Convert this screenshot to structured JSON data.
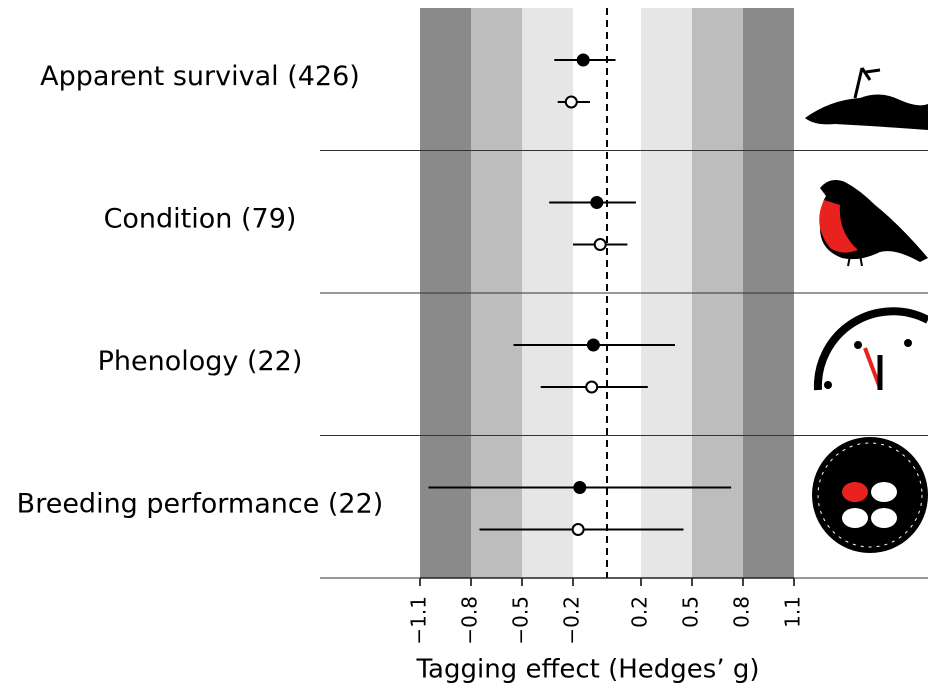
{
  "chart_data": {
    "type": "forest",
    "categories": [
      "Apparent survival (426)",
      "Condition (79)",
      "Phenology (22)",
      "Breeding performance (22)"
    ],
    "series": [
      {
        "marker": "filled",
        "color": "#000000",
        "values": [
          -0.14,
          -0.06,
          -0.08,
          -0.16
        ],
        "lower": [
          -0.31,
          -0.34,
          -0.55,
          -1.05
        ],
        "upper": [
          0.05,
          0.17,
          0.4,
          0.73
        ]
      },
      {
        "marker": "open",
        "color": "#000000",
        "values": [
          -0.21,
          -0.04,
          -0.09,
          -0.17
        ],
        "lower": [
          -0.29,
          -0.2,
          -0.39,
          -0.75
        ],
        "upper": [
          -0.1,
          0.12,
          0.24,
          0.45
        ]
      }
    ],
    "xlim": [
      -1.1,
      1.1
    ],
    "xticks": [
      {
        "value": -1.1,
        "label": "−1.1"
      },
      {
        "value": -0.8,
        "label": "−0.8"
      },
      {
        "value": -0.5,
        "label": "−0.5"
      },
      {
        "value": -0.2,
        "label": "−0.2"
      },
      0.2,
      0.5,
      0.8,
      1.1
    ],
    "band_colors": [
      "#8a8a8a",
      "#bdbdbd",
      "#e6e6e6",
      "#ffffff",
      "#e6e6e6",
      "#bdbdbd",
      "#8a8a8a"
    ],
    "reference_line": 0,
    "x_label": "Tagging effect (Hedges’ g)"
  }
}
